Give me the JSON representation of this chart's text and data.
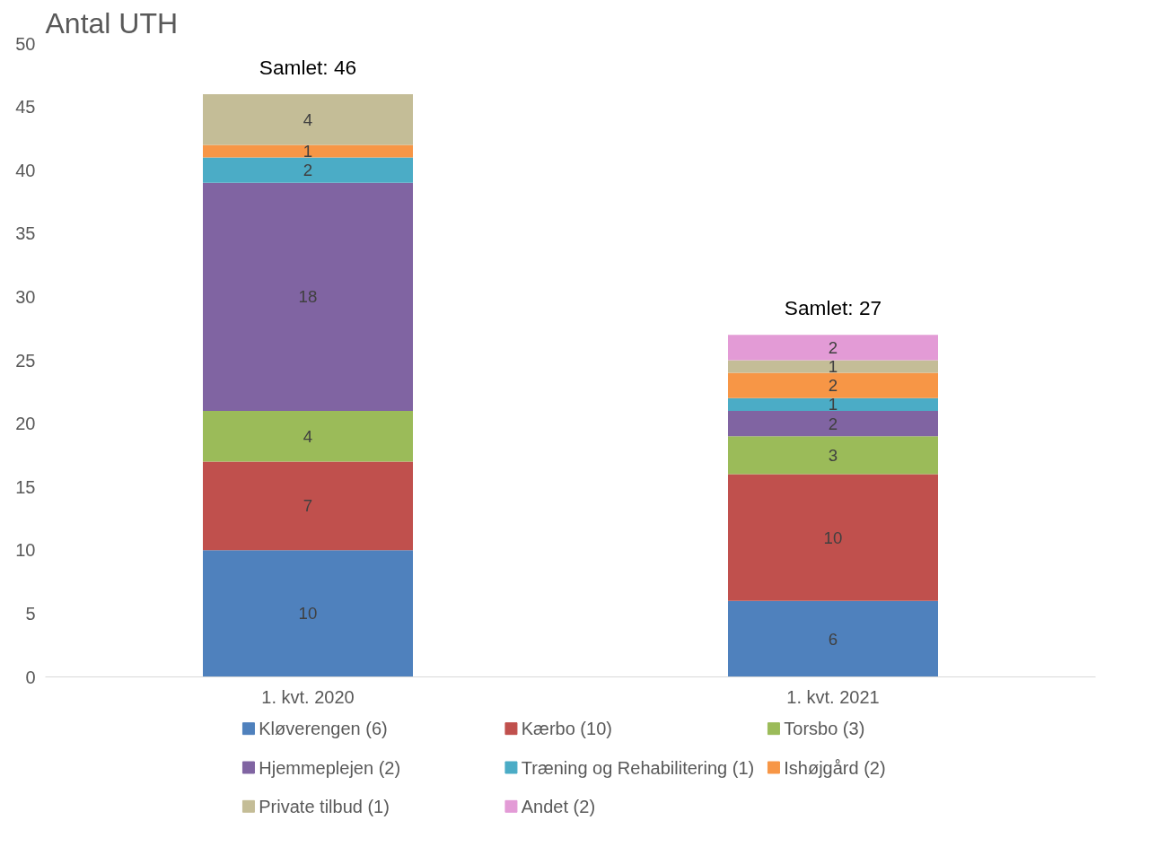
{
  "chart_data": {
    "type": "bar",
    "title": "Antal UTH",
    "categories": [
      "1. kvt. 2020",
      "1. kvt. 2021"
    ],
    "stacked": true,
    "series": [
      {
        "name": "Kløverengen (6)",
        "color": "#4f81bd",
        "values": [
          10,
          6
        ]
      },
      {
        "name": "Kærbo (10)",
        "color": "#c0504d",
        "values": [
          7,
          10
        ]
      },
      {
        "name": "Torsbo (3)",
        "color": "#9bbb59",
        "values": [
          4,
          3
        ]
      },
      {
        "name": "Hjemmeplejen (2)",
        "color": "#8064a2",
        "values": [
          18,
          2
        ]
      },
      {
        "name": "Træning og Rehabilitering (1)",
        "color": "#4bacc6",
        "values": [
          2,
          1
        ]
      },
      {
        "name": "Ishøjgård (2)",
        "color": "#f79646",
        "values": [
          1,
          2
        ]
      },
      {
        "name": "Private tilbud (1)",
        "color": "#c4bd97",
        "values": [
          4,
          1
        ]
      },
      {
        "name": "Andet (2)",
        "color": "#e39bd6",
        "values": [
          null,
          2
        ]
      }
    ],
    "ylim": [
      0,
      50
    ],
    "yticks": [
      0,
      5,
      10,
      15,
      20,
      25,
      30,
      35,
      40,
      45,
      50
    ],
    "grid": false,
    "legend": "bottom",
    "data_labels": true,
    "totals": [
      "Samlet: 46",
      "Samlet: 27"
    ]
  }
}
